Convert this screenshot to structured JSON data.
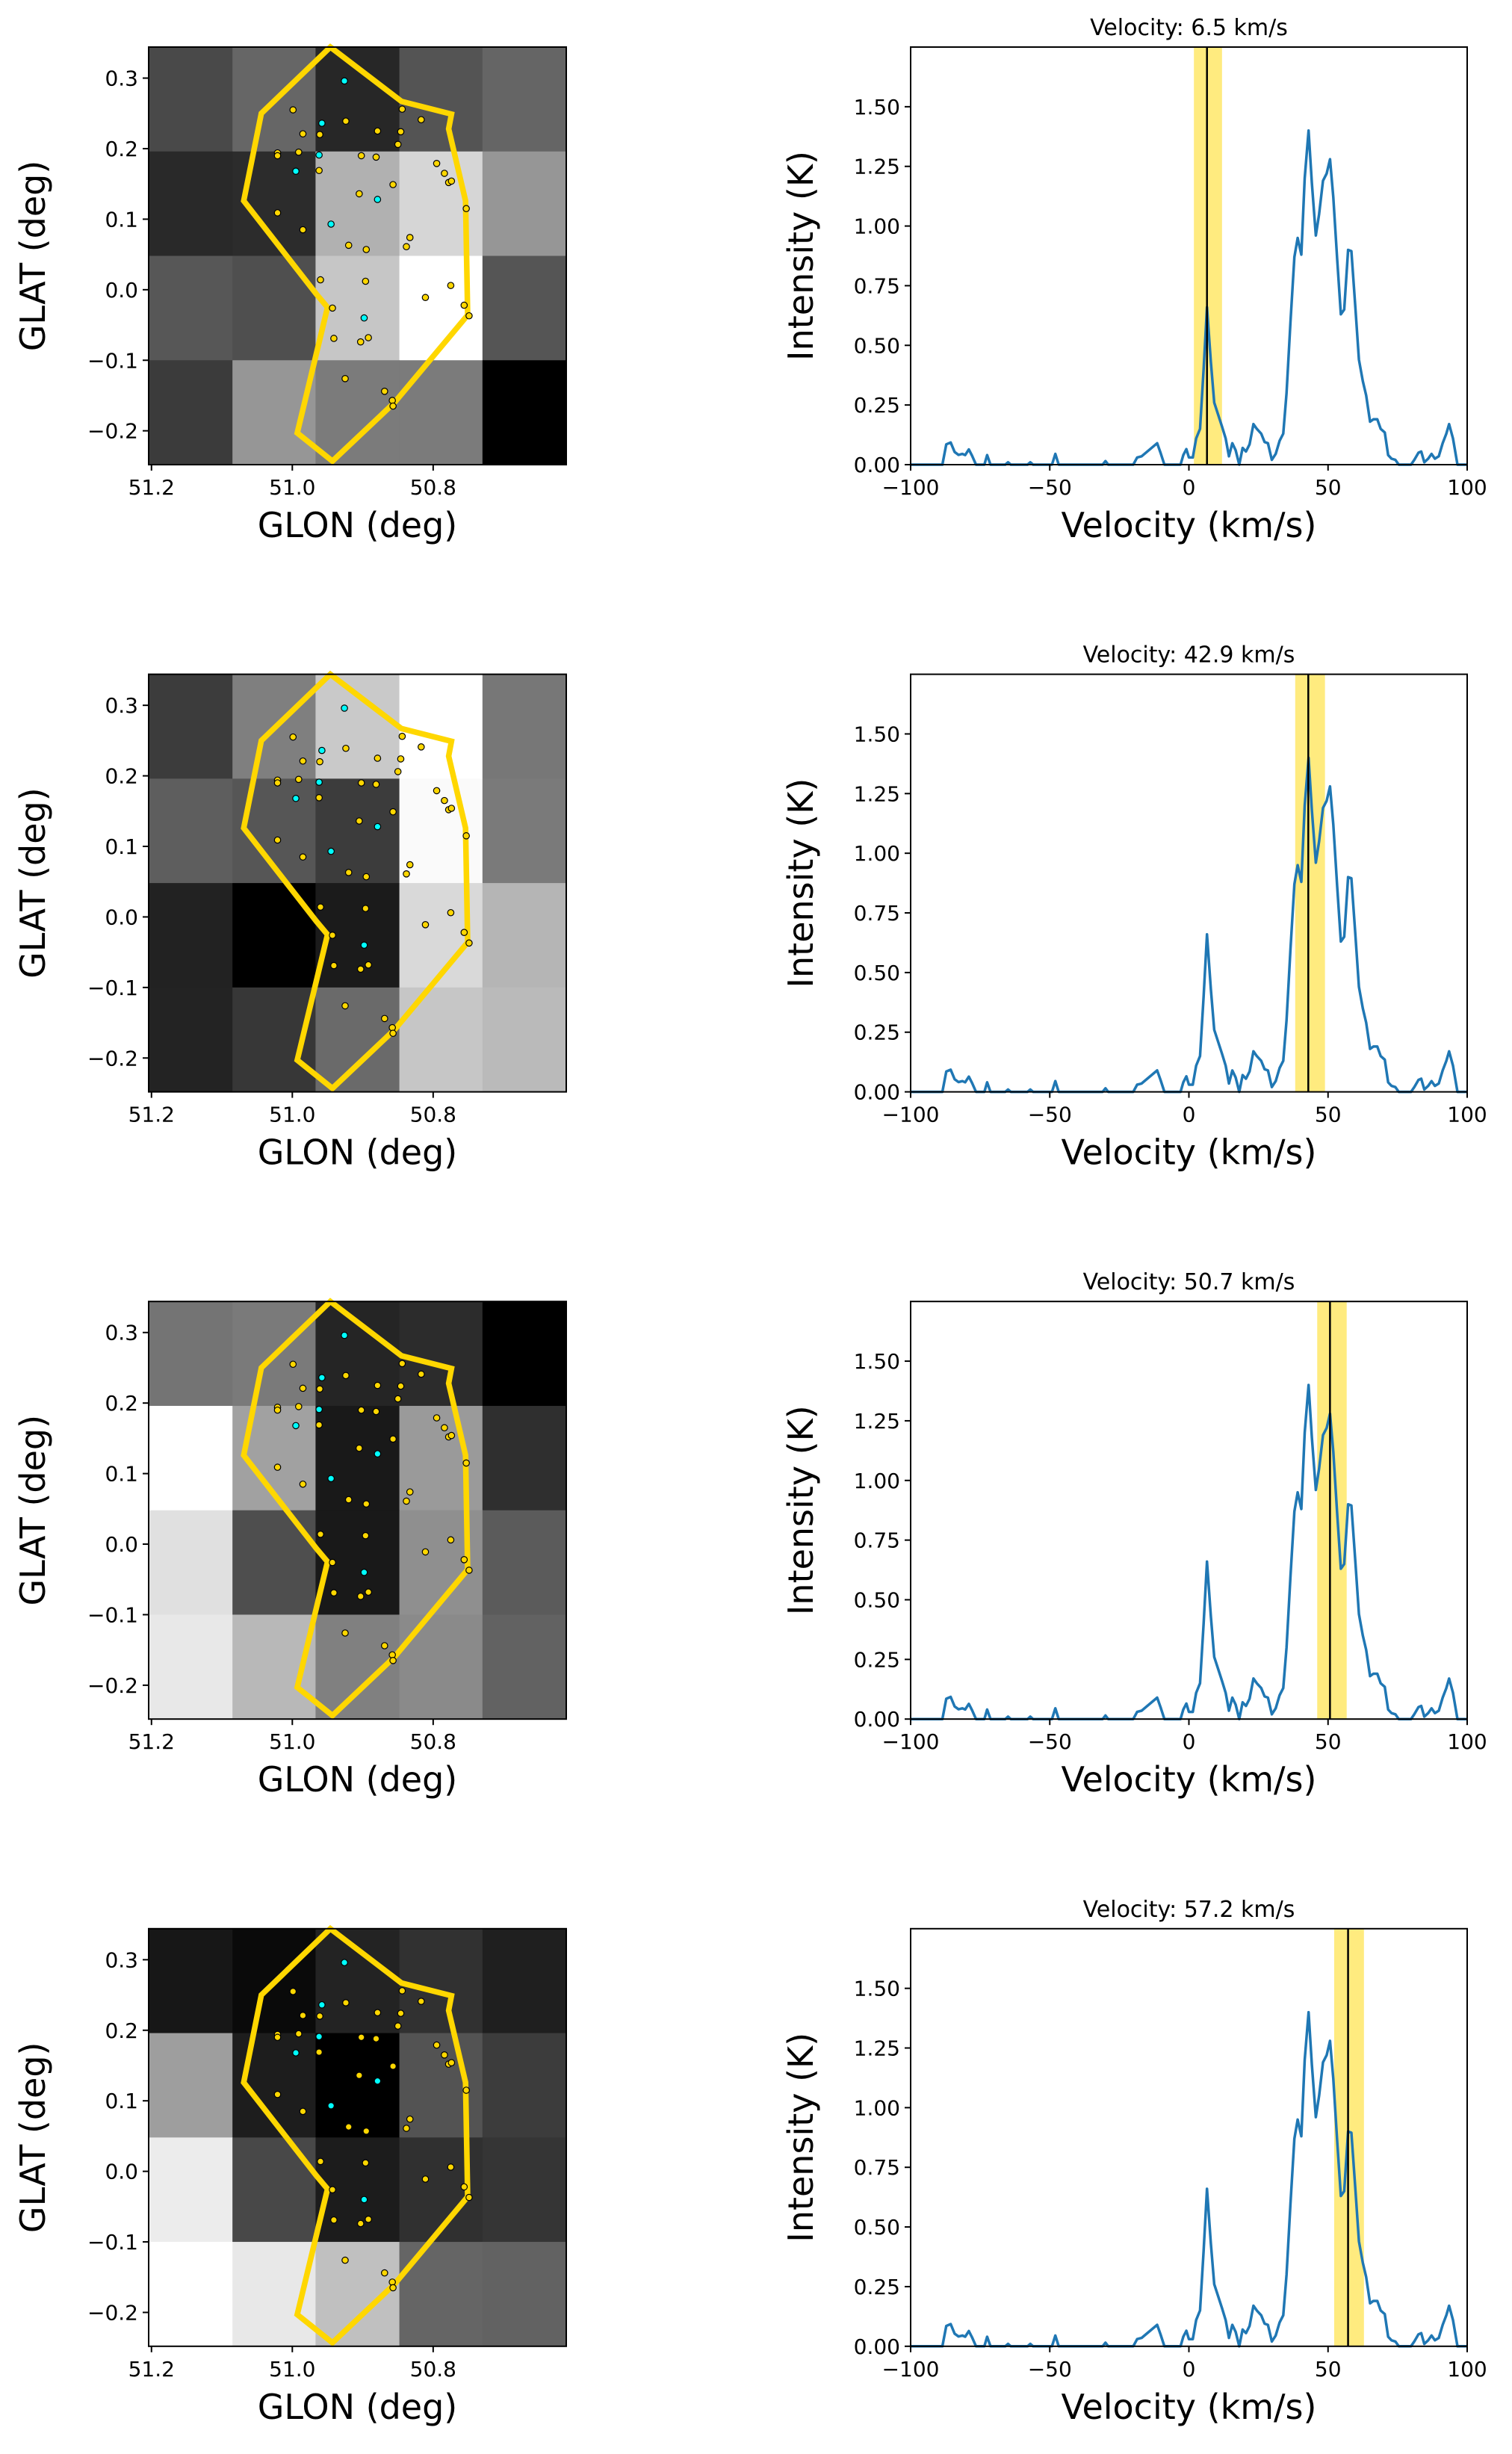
{
  "colors": {
    "polygon": "#ffd700",
    "source_yellow": "#ffd700",
    "source_cyan": "#00ffff",
    "spectrum": "#1f77b4",
    "band": "#ffd700",
    "marker": "#000000"
  },
  "chart_data": [
    {
      "type": "map_and_spectrum",
      "velocity": 6.5,
      "title": "Velocity: 6.5 km/s",
      "band": [
        1.8,
        11.9
      ],
      "map_gray": [
        [
          73,
          102,
          39,
          84,
          101
        ],
        [
          41,
          44,
          177,
          214,
          150
        ],
        [
          87,
          79,
          198,
          255,
          85
        ],
        [
          59,
          150,
          123,
          123,
          0
        ]
      ]
    },
    {
      "type": "map_and_spectrum",
      "velocity": 42.9,
      "title": "Velocity: 42.9 km/s",
      "band": [
        38.2,
        48.9
      ],
      "map_gray": [
        [
          60,
          127,
          201,
          255,
          119
        ],
        [
          94,
          86,
          60,
          250,
          122
        ],
        [
          34,
          0,
          27,
          217,
          181
        ],
        [
          35,
          55,
          106,
          198,
          186
        ]
      ]
    },
    {
      "type": "map_and_spectrum",
      "velocity": 50.7,
      "title": "Velocity: 50.7 km/s",
      "band": [
        46.1,
        56.7
      ],
      "map_gray": [
        [
          116,
          122,
          37,
          44,
          0
        ],
        [
          255,
          161,
          25,
          154,
          47
        ],
        [
          224,
          78,
          25,
          143,
          91
        ],
        [
          232,
          184,
          128,
          138,
          98
        ]
      ]
    },
    {
      "type": "map_and_spectrum",
      "velocity": 57.2,
      "title": "Velocity: 57.2 km/s",
      "band": [
        52.2,
        62.9
      ],
      "map_gray": [
        [
          23,
          10,
          35,
          49,
          31
        ],
        [
          158,
          29,
          0,
          83,
          60
        ],
        [
          236,
          72,
          28,
          48,
          53
        ],
        [
          255,
          232,
          192,
          101,
          98
        ]
      ]
    }
  ],
  "map": {
    "xlabel": "GLON (deg)",
    "ylabel": "GLAT (deg)",
    "xlim": [
      51.204,
      50.611
    ],
    "ylim": [
      -0.248,
      0.344
    ],
    "pixel_edges_glon": [
      51.204,
      51.085,
      50.967,
      50.848,
      50.73,
      50.611
    ],
    "pixel_edges_glat": [
      0.344,
      0.196,
      0.048,
      -0.1,
      -0.248
    ],
    "xticks": [
      51.2,
      51.0,
      50.8
    ],
    "xtick_labels": [
      "51.2",
      "51.0",
      "50.8"
    ],
    "yticks": [
      0.3,
      0.2,
      0.1,
      0.0,
      -0.1,
      -0.2
    ],
    "ytick_labels": [
      "0.3",
      "0.2",
      "0.1",
      "0.0",
      "−0.1",
      "−0.2"
    ],
    "polygon": [
      [
        50.946,
        0.344
      ],
      [
        50.845,
        0.267
      ],
      [
        50.774,
        0.249
      ],
      [
        50.778,
        0.228
      ],
      [
        50.754,
        0.126
      ],
      [
        50.751,
        -0.036
      ],
      [
        50.855,
        -0.16
      ],
      [
        50.943,
        -0.243
      ],
      [
        50.993,
        -0.203
      ],
      [
        50.95,
        -0.025
      ],
      [
        50.966,
        -0.006
      ],
      [
        51.069,
        0.126
      ],
      [
        51.044,
        0.25
      ]
    ],
    "sources_yellow": [
      [
        50.999,
        0.255
      ],
      [
        50.924,
        0.239
      ],
      [
        50.985,
        0.221
      ],
      [
        50.961,
        0.22
      ],
      [
        50.879,
        0.225
      ],
      [
        50.846,
        0.224
      ],
      [
        50.817,
        0.241
      ],
      [
        50.844,
        0.256
      ],
      [
        50.85,
        0.206
      ],
      [
        51.021,
        0.194
      ],
      [
        51.021,
        0.19
      ],
      [
        50.991,
        0.195
      ],
      [
        50.902,
        0.19
      ],
      [
        50.881,
        0.188
      ],
      [
        50.962,
        0.169
      ],
      [
        50.795,
        0.179
      ],
      [
        50.784,
        0.165
      ],
      [
        50.778,
        0.152
      ],
      [
        50.774,
        0.154
      ],
      [
        50.857,
        0.149
      ],
      [
        50.905,
        0.136
      ],
      [
        50.753,
        0.115
      ],
      [
        51.021,
        0.109
      ],
      [
        50.985,
        0.085
      ],
      [
        50.833,
        0.074
      ],
      [
        50.838,
        0.061
      ],
      [
        50.92,
        0.063
      ],
      [
        50.895,
        0.057
      ],
      [
        50.96,
        0.014
      ],
      [
        50.896,
        0.012
      ],
      [
        50.775,
        0.006
      ],
      [
        50.811,
        -0.011
      ],
      [
        50.943,
        -0.026
      ],
      [
        50.756,
        -0.022
      ],
      [
        50.749,
        -0.037
      ],
      [
        50.941,
        -0.069
      ],
      [
        50.892,
        -0.068
      ],
      [
        50.903,
        -0.074
      ],
      [
        50.925,
        -0.126
      ],
      [
        50.869,
        -0.144
      ],
      [
        50.858,
        -0.157
      ],
      [
        50.857,
        -0.165
      ]
    ],
    "sources_cyan": [
      [
        50.926,
        0.296
      ],
      [
        50.958,
        0.236
      ],
      [
        50.962,
        0.191
      ],
      [
        50.995,
        0.168
      ],
      [
        50.879,
        0.128
      ],
      [
        50.945,
        0.093
      ],
      [
        50.898,
        -0.04
      ]
    ]
  },
  "spectrum": {
    "xlabel": "Velocity (km/s)",
    "ylabel": "Intensity (K)",
    "xlim": [
      -100,
      100
    ],
    "ylim": [
      0,
      1.75
    ],
    "xticks": [
      -100,
      -50,
      0,
      50,
      100
    ],
    "xtick_labels": [
      "−100",
      "−50",
      "0",
      "50",
      "100"
    ],
    "yticks": [
      0,
      0.25,
      0.5,
      0.75,
      1.0,
      1.25,
      1.5
    ],
    "ytick_labels": [
      "0.00",
      "0.25",
      "0.50",
      "0.75",
      "1.00",
      "1.25",
      "1.50"
    ],
    "velocity": [
      -100,
      -88.6,
      -87.2,
      -85.6,
      -84.2,
      -82.8,
      -81.4,
      -80.4,
      -79.1,
      -77.9,
      -76.5,
      -73.5,
      -72.5,
      -71.3,
      -66,
      -65,
      -64,
      -58,
      -57,
      -56,
      -49.2,
      -48,
      -46.8,
      -31,
      -30,
      -29,
      -20,
      -18.6,
      -17,
      -11.4,
      -10.2,
      -8.8,
      -3,
      -2,
      -0.9,
      0,
      1.4,
      2.6,
      4,
      5.3,
      6.5,
      7.9,
      9.1,
      10.5,
      11.9,
      13.2,
      14.4,
      15.6,
      16.8,
      18.1,
      19.3,
      20.5,
      21.8,
      23.2,
      24.4,
      26,
      27.2,
      28.4,
      29.8,
      31.2,
      32.6,
      33.9,
      35.1,
      36.5,
      37.9,
      39.1,
      40.4,
      41.6,
      43,
      44.2,
      45.6,
      46.8,
      48.2,
      49.5,
      50.7,
      51.9,
      53.3,
      54.6,
      55.8,
      57.2,
      58.4,
      59.8,
      61.1,
      62.5,
      63.7,
      65.1,
      66.3,
      67.7,
      68.9,
      70.4,
      71.6,
      72.8,
      74.2,
      75.4,
      79.8,
      81,
      82.5,
      83.5,
      84.6,
      86,
      87.2,
      88.4,
      89.8,
      91.2,
      92.5,
      93.5,
      94.9,
      96.5,
      100
    ],
    "intensity": [
      0,
      0,
      0.085,
      0.093,
      0.053,
      0.041,
      0.045,
      0.04,
      0.064,
      0.037,
      0,
      0,
      0.04,
      0,
      0,
      0.01,
      0,
      0,
      0.01,
      0,
      0,
      0.045,
      0,
      0,
      0.015,
      0,
      0,
      0.03,
      0.035,
      0.09,
      0.05,
      0,
      0,
      0.04,
      0.065,
      0.03,
      0.03,
      0.11,
      0.15,
      0.4,
      0.66,
      0.43,
      0.26,
      0.21,
      0.16,
      0.11,
      0.035,
      0.09,
      0.06,
      0,
      0.07,
      0.055,
      0.085,
      0.17,
      0.15,
      0.13,
      0.095,
      0.09,
      0.02,
      0.045,
      0.1,
      0.13,
      0.3,
      0.6,
      0.87,
      0.95,
      0.88,
      1.2,
      1.4,
      1.18,
      0.96,
      1.05,
      1.19,
      1.22,
      1.28,
      1.12,
      0.86,
      0.63,
      0.65,
      0.9,
      0.895,
      0.66,
      0.44,
      0.35,
      0.29,
      0.18,
      0.19,
      0.19,
      0.15,
      0.135,
      0.04,
      0.025,
      0.02,
      0,
      0,
      0.02,
      0.05,
      0.055,
      0.01,
      0.025,
      0.045,
      0.025,
      0.035,
      0.09,
      0.13,
      0.17,
      0.11,
      0,
      0
    ]
  }
}
